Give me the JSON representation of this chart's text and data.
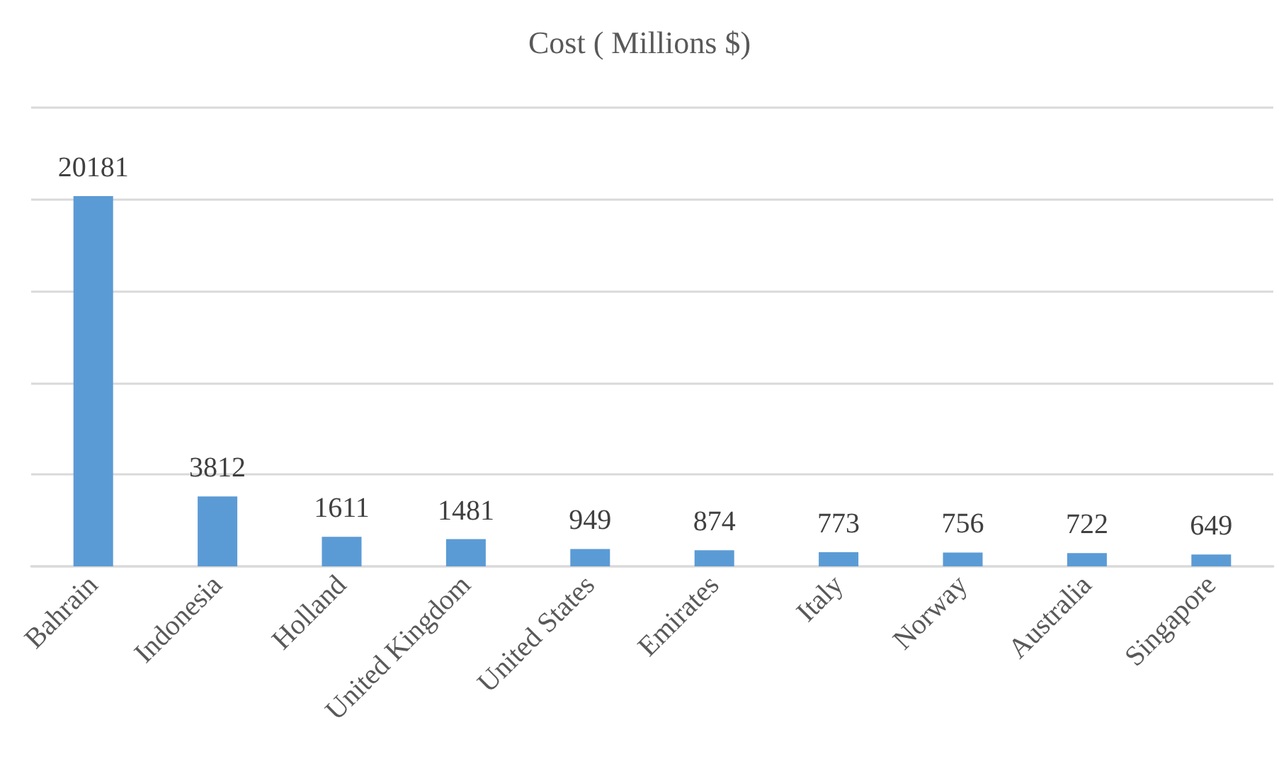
{
  "chart_data": {
    "type": "bar",
    "title": "Cost ( Millions $)",
    "categories": [
      "Bahrain",
      "Indonesia",
      "Holland",
      "United Kingdom",
      "United States",
      "Emirates",
      "Italy",
      "Norway",
      "Australia",
      "Singapore"
    ],
    "values": [
      20181,
      3812,
      1611,
      1481,
      949,
      874,
      773,
      756,
      722,
      649
    ],
    "color": "#5b9bd5",
    "ylim": [
      0,
      25000
    ],
    "yticks": [
      {
        "value": 0,
        "label": null
      },
      {
        "value": 5000,
        "label": null
      },
      {
        "value": 10000,
        "label": null
      },
      {
        "value": 15000,
        "label": null
      },
      {
        "value": 20000,
        "label": null
      },
      {
        "value": 25000,
        "label": null
      }
    ],
    "tick_labels": "x",
    "grid": "y",
    "data_labels": true
  }
}
